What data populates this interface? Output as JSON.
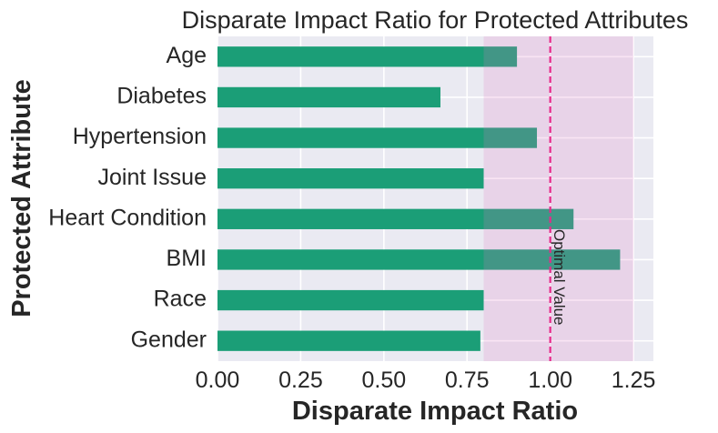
{
  "chart_data": {
    "type": "bar",
    "orientation": "horizontal",
    "title": "Disparate Impact Ratio for Protected Attributes",
    "xlabel": "Disparate Impact Ratio",
    "ylabel": "Protected Attribute",
    "xlim": [
      0,
      1.31
    ],
    "x_ticks": [
      0.0,
      0.25,
      0.5,
      0.75,
      1.0,
      1.25
    ],
    "x_tick_labels": [
      "0.00",
      "0.25",
      "0.50",
      "0.75",
      "1.00",
      "1.25"
    ],
    "categories": [
      "Age",
      "Diabetes",
      "Hypertension",
      "Joint Issue",
      "Heart Condition",
      "BMI",
      "Race",
      "Gender"
    ],
    "values": [
      0.9,
      0.67,
      0.96,
      0.8,
      1.07,
      1.21,
      0.8,
      0.79
    ],
    "fair_region": [
      0.8,
      1.25
    ],
    "optimal_value": 1.0,
    "optimal_label": "Optimal Value",
    "grid": true,
    "colors": {
      "bar": "#1b9e77",
      "fair_region": "#e377c2",
      "optimal_line": "#e7298a",
      "plot_bg": "#eaeaf2",
      "grid": "#ffffff",
      "text": "#262626"
    }
  }
}
